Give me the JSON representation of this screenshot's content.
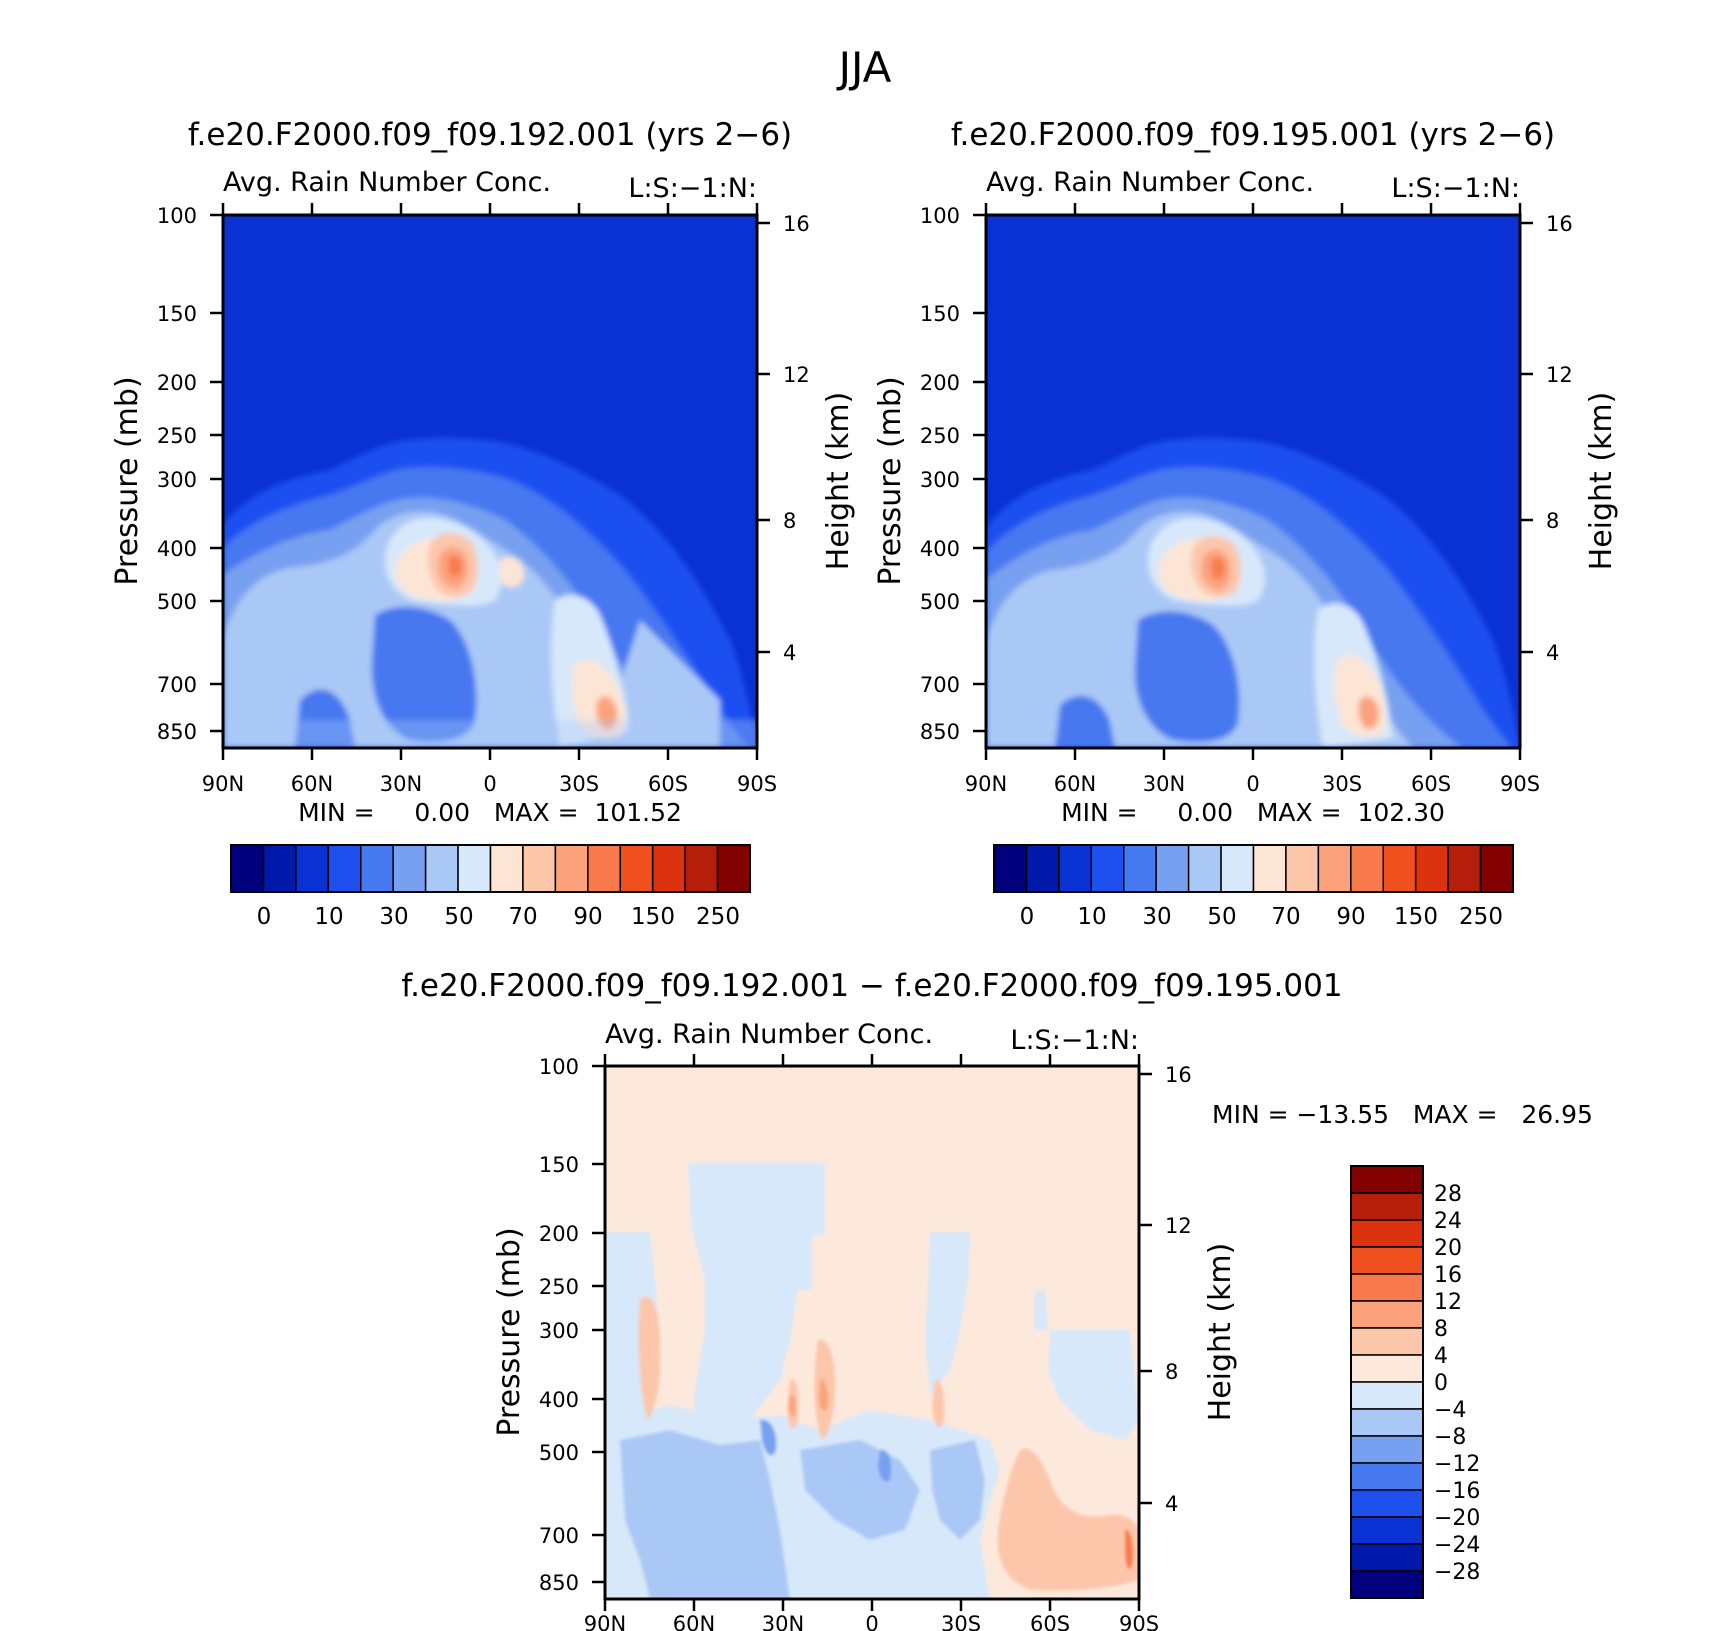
{
  "page_title": "JJA",
  "colors": {
    "scale_absolute": [
      "#00007f",
      "#0019aa",
      "#0a32d2",
      "#1e50f0",
      "#4678f0",
      "#78a0f0",
      "#aac8f5",
      "#d7e8fa",
      "#fde5d6",
      "#fcc6ab",
      "#fba27c",
      "#f87a4c",
      "#f0501e",
      "#dc320f",
      "#b41e0a",
      "#820000"
    ],
    "scale_difference": [
      "#00007f",
      "#0019aa",
      "#0a32d2",
      "#1e50f0",
      "#4678f0",
      "#78a0f0",
      "#aac8f5",
      "#d7e8fa",
      "#fde9dc",
      "#fcc6ab",
      "#fba27c",
      "#f87a4c",
      "#f0501e",
      "#dc320f",
      "#b41e0a",
      "#820000"
    ]
  },
  "chart_data": [
    {
      "type": "heatmap",
      "title": "f.e20.F2000.f09_f09.192.001 (yrs 2−6)",
      "subtitle": "Avg. Rain Number Conc.",
      "right_string": "L:S:−1:N:",
      "xlabel": "",
      "ylabel": "Pressure (mb)",
      "ylabel_right": "Height (km)",
      "x_ticks": [
        "90N",
        "60N",
        "30N",
        "0",
        "30S",
        "60S",
        "90S"
      ],
      "y_ticks": [
        "100",
        "150",
        "200",
        "250",
        "300",
        "400",
        "500",
        "700",
        "850"
      ],
      "y_right_ticks": [
        "16",
        "12",
        "8",
        "4"
      ],
      "stats": "MIN =     0.00   MAX =  101.52",
      "ylim": [
        100,
        850
      ],
      "y_scale": "log",
      "colorbar": {
        "orientation": "horizontal",
        "labels": [
          "0",
          "10",
          "30",
          "50",
          "70",
          "90",
          "150",
          "250"
        ]
      }
    },
    {
      "type": "heatmap",
      "title": "f.e20.F2000.f09_f09.195.001 (yrs 2−6)",
      "subtitle": "Avg. Rain Number Conc.",
      "right_string": "L:S:−1:N:",
      "xlabel": "",
      "ylabel": "Pressure (mb)",
      "ylabel_right": "Height (km)",
      "x_ticks": [
        "90N",
        "60N",
        "30N",
        "0",
        "30S",
        "60S",
        "90S"
      ],
      "y_ticks": [
        "100",
        "150",
        "200",
        "250",
        "300",
        "400",
        "500",
        "700",
        "850"
      ],
      "y_right_ticks": [
        "16",
        "12",
        "8",
        "4"
      ],
      "stats": "MIN =     0.00   MAX =  102.30",
      "ylim": [
        100,
        850
      ],
      "y_scale": "log",
      "colorbar": {
        "orientation": "horizontal",
        "labels": [
          "0",
          "10",
          "30",
          "50",
          "70",
          "90",
          "150",
          "250"
        ]
      }
    },
    {
      "type": "heatmap",
      "title": "f.e20.F2000.f09_f09.192.001 − f.e20.F2000.f09_f09.195.001",
      "subtitle": "Avg. Rain Number Conc.",
      "right_string": "L:S:−1:N:",
      "xlabel": "",
      "ylabel": "Pressure (mb)",
      "ylabel_right": "Height (km)",
      "x_ticks": [
        "90N",
        "60N",
        "30N",
        "0",
        "30S",
        "60S",
        "90S"
      ],
      "y_ticks": [
        "100",
        "150",
        "200",
        "250",
        "300",
        "400",
        "500",
        "700",
        "850"
      ],
      "y_right_ticks": [
        "16",
        "12",
        "8",
        "4"
      ],
      "stats": "MIN = −13.55   MAX =   26.95",
      "ylim": [
        100,
        850
      ],
      "y_scale": "log",
      "colorbar": {
        "orientation": "vertical",
        "labels": [
          "28",
          "24",
          "20",
          "16",
          "12",
          "8",
          "4",
          "0",
          "−4",
          "−8",
          "−12",
          "−16",
          "−20",
          "−24",
          "−28"
        ]
      }
    }
  ]
}
